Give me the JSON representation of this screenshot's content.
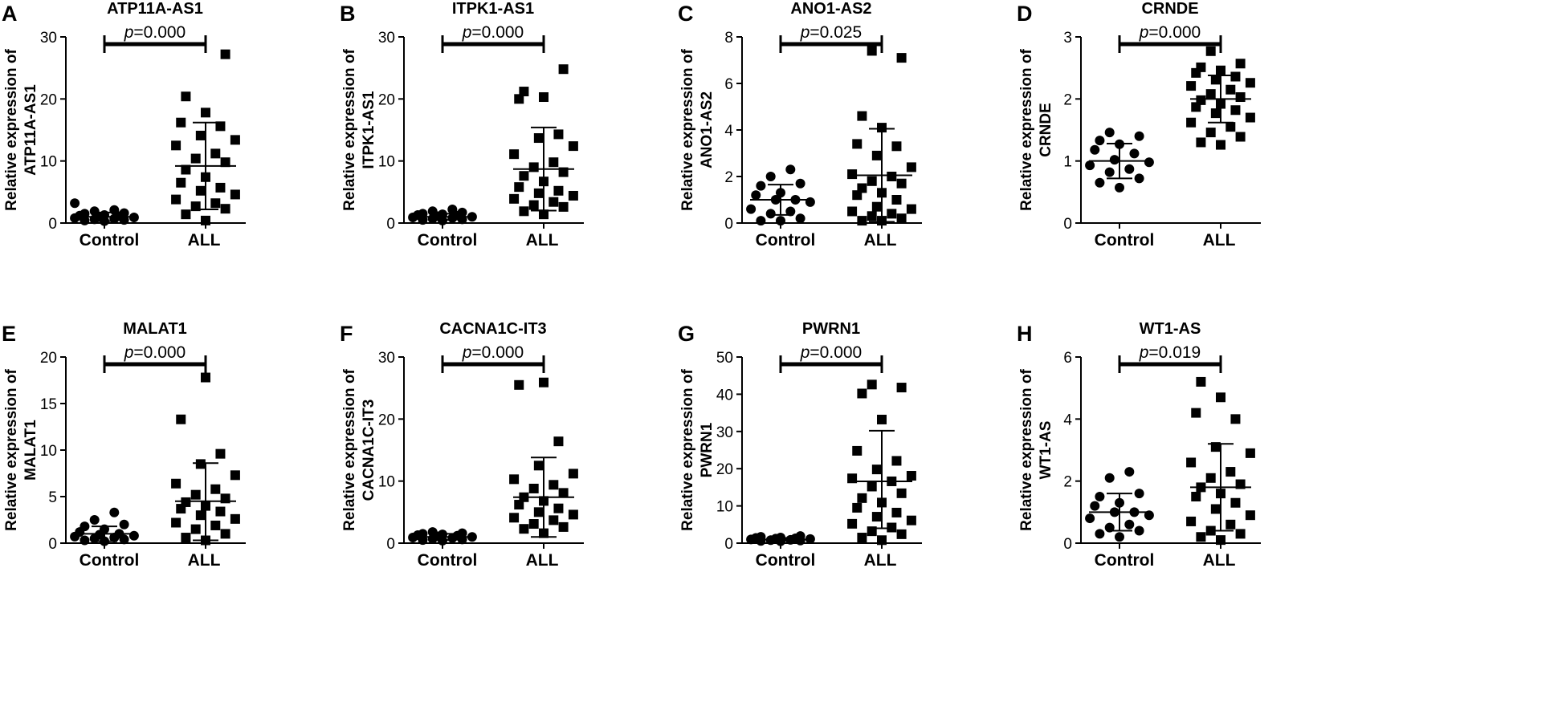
{
  "figure": {
    "panels": [
      "A",
      "B",
      "C",
      "D",
      "E",
      "F",
      "G",
      "H"
    ]
  },
  "chart_data": [
    {
      "type": "scatter",
      "panel": "A",
      "title": "ATP11A-AS1",
      "ylabel_lines": [
        "Relative expression of",
        "ATP11A-AS1"
      ],
      "categories": [
        "Control",
        "ALL"
      ],
      "ylim": [
        0,
        30
      ],
      "yticks": [
        0,
        10,
        20,
        30
      ],
      "p_label": "p=0.000",
      "series": [
        {
          "name": "Control",
          "marker": "circle",
          "mean": 1.0,
          "sd_low": 0.3,
          "sd_high": 1.7,
          "values": [
            3.2,
            2.1,
            1.9,
            1.6,
            1.5,
            1.3,
            1.2,
            1.1,
            1.0,
            0.9,
            0.8,
            0.7,
            0.6,
            0.5,
            0.4,
            0.3
          ]
        },
        {
          "name": "ALL",
          "marker": "square",
          "mean": 9.2,
          "sd_low": 2.2,
          "sd_high": 16.2,
          "values": [
            27.2,
            20.4,
            17.8,
            16.2,
            15.6,
            14.1,
            13.4,
            12.5,
            11.2,
            10.4,
            9.8,
            8.6,
            7.4,
            6.5,
            5.7,
            5.2,
            4.6,
            3.8,
            3.2,
            2.7,
            2.3,
            1.4,
            0.4
          ]
        }
      ]
    },
    {
      "type": "scatter",
      "panel": "B",
      "title": "ITPK1-AS1",
      "ylabel_lines": [
        "Relative expression of",
        "ITPK1-AS1"
      ],
      "categories": [
        "Control",
        "ALL"
      ],
      "ylim": [
        0,
        30
      ],
      "yticks": [
        0,
        10,
        20,
        30
      ],
      "p_label": "p=0.000",
      "series": [
        {
          "name": "Control",
          "marker": "circle",
          "mean": 1.0,
          "sd_low": 0.5,
          "sd_high": 1.5,
          "values": [
            2.2,
            1.9,
            1.7,
            1.5,
            1.4,
            1.3,
            1.2,
            1.1,
            1.0,
            0.9,
            0.8,
            0.7,
            0.6,
            0.5,
            0.4
          ]
        },
        {
          "name": "ALL",
          "marker": "square",
          "mean": 8.7,
          "sd_low": 2.0,
          "sd_high": 15.4,
          "values": [
            24.8,
            21.2,
            20.3,
            20.0,
            14.3,
            13.7,
            12.4,
            11.1,
            9.8,
            9.0,
            8.2,
            7.6,
            6.7,
            5.8,
            5.2,
            4.8,
            4.4,
            3.9,
            3.4,
            2.9,
            2.6,
            1.9,
            1.4
          ]
        }
      ]
    },
    {
      "type": "scatter",
      "panel": "C",
      "title": "ANO1-AS2",
      "ylabel_lines": [
        "Relative expression of",
        "ANO1-AS2"
      ],
      "categories": [
        "Control",
        "ALL"
      ],
      "ylim": [
        0,
        8
      ],
      "yticks": [
        0,
        2,
        4,
        6,
        8
      ],
      "p_label": "p=0.025",
      "series": [
        {
          "name": "Control",
          "marker": "circle",
          "mean": 1.0,
          "sd_low": 0.35,
          "sd_high": 1.65,
          "values": [
            2.3,
            2.0,
            1.7,
            1.6,
            1.3,
            1.2,
            1.0,
            1.0,
            0.9,
            0.6,
            0.5,
            0.4,
            0.2,
            0.1,
            0.1
          ]
        },
        {
          "name": "ALL",
          "marker": "square",
          "mean": 2.05,
          "sd_low": 0.05,
          "sd_high": 4.05,
          "values": [
            7.4,
            7.1,
            4.6,
            4.1,
            3.4,
            3.3,
            2.9,
            2.4,
            2.1,
            2.0,
            1.8,
            1.7,
            1.5,
            1.3,
            1.2,
            1.0,
            0.7,
            0.6,
            0.5,
            0.4,
            0.3,
            0.2,
            0.1,
            0.1
          ]
        }
      ]
    },
    {
      "type": "scatter",
      "panel": "D",
      "title": "CRNDE",
      "ylabel_lines": [
        "Relative expression of",
        "CRNDE"
      ],
      "categories": [
        "Control",
        "ALL"
      ],
      "ylim": [
        0,
        3
      ],
      "yticks": [
        0,
        1,
        2,
        3
      ],
      "p_label": "p=0.000",
      "series": [
        {
          "name": "Control",
          "marker": "circle",
          "mean": 1.0,
          "sd_low": 0.72,
          "sd_high": 1.28,
          "values": [
            1.46,
            1.4,
            1.33,
            1.27,
            1.18,
            1.12,
            1.02,
            0.98,
            0.93,
            0.87,
            0.82,
            0.72,
            0.65,
            0.57
          ]
        },
        {
          "name": "ALL",
          "marker": "square",
          "mean": 2.0,
          "sd_low": 1.62,
          "sd_high": 2.38,
          "values": [
            2.77,
            2.57,
            2.51,
            2.46,
            2.42,
            2.36,
            2.31,
            2.26,
            2.21,
            2.15,
            2.08,
            2.03,
            1.98,
            1.92,
            1.87,
            1.82,
            1.77,
            1.7,
            1.62,
            1.55,
            1.46,
            1.39,
            1.3,
            1.26
          ]
        }
      ]
    },
    {
      "type": "scatter",
      "panel": "E",
      "title": "MALAT1",
      "ylabel_lines": [
        "Relative expression of",
        "MALAT1"
      ],
      "categories": [
        "Control",
        "ALL"
      ],
      "ylim": [
        0,
        20
      ],
      "yticks": [
        0,
        5,
        10,
        15,
        20
      ],
      "p_label": "p=0.000",
      "series": [
        {
          "name": "Control",
          "marker": "circle",
          "mean": 1.0,
          "sd_low": 0.2,
          "sd_high": 1.8,
          "values": [
            3.3,
            2.5,
            2.0,
            1.8,
            1.5,
            1.2,
            1.0,
            0.9,
            0.8,
            0.7,
            0.6,
            0.5,
            0.4,
            0.3,
            0.2
          ]
        },
        {
          "name": "ALL",
          "marker": "square",
          "mean": 4.5,
          "sd_low": 0.3,
          "sd_high": 8.6,
          "values": [
            17.8,
            13.3,
            9.6,
            8.5,
            7.3,
            6.4,
            5.8,
            5.2,
            4.8,
            4.4,
            4.0,
            3.7,
            3.4,
            3.0,
            2.6,
            2.2,
            1.9,
            1.5,
            1.0,
            0.6,
            0.3
          ]
        }
      ]
    },
    {
      "type": "scatter",
      "panel": "F",
      "title": "CACNA1C-IT3",
      "ylabel_lines": [
        "Relative expression of",
        "CACNA1C-IT3"
      ],
      "categories": [
        "Control",
        "ALL"
      ],
      "ylim": [
        0,
        30
      ],
      "yticks": [
        0,
        10,
        20,
        30
      ],
      "p_label": "p=0.000",
      "series": [
        {
          "name": "Control",
          "marker": "circle",
          "mean": 1.0,
          "sd_low": 0.5,
          "sd_high": 1.5,
          "values": [
            1.8,
            1.6,
            1.5,
            1.4,
            1.3,
            1.2,
            1.1,
            1.0,
            0.9,
            0.8,
            0.7,
            0.6,
            0.5,
            0.4
          ]
        },
        {
          "name": "ALL",
          "marker": "square",
          "mean": 7.4,
          "sd_low": 1.0,
          "sd_high": 13.8,
          "values": [
            25.9,
            25.5,
            16.4,
            12.5,
            11.2,
            10.3,
            9.4,
            8.8,
            8.1,
            7.4,
            6.8,
            6.2,
            5.6,
            5.0,
            4.6,
            4.1,
            3.7,
            3.1,
            2.6,
            2.3,
            1.6
          ]
        }
      ]
    },
    {
      "type": "scatter",
      "panel": "G",
      "title": "PWRN1",
      "ylabel_lines": [
        "Relative expression of",
        "PWRN1"
      ],
      "categories": [
        "Control",
        "ALL"
      ],
      "ylim": [
        0,
        50
      ],
      "yticks": [
        0,
        10,
        20,
        30,
        40,
        50
      ],
      "p_label": "p=0.000",
      "series": [
        {
          "name": "Control",
          "marker": "circle",
          "mean": 1.0,
          "sd_low": 0.6,
          "sd_high": 1.4,
          "values": [
            1.9,
            1.7,
            1.5,
            1.4,
            1.3,
            1.2,
            1.1,
            1.0,
            0.9,
            0.8,
            0.7,
            0.6,
            0.5
          ]
        },
        {
          "name": "ALL",
          "marker": "square",
          "mean": 16.6,
          "sd_low": 4.0,
          "sd_high": 30.2,
          "values": [
            42.6,
            41.8,
            40.2,
            33.2,
            24.8,
            22.1,
            19.8,
            18.1,
            17.4,
            16.6,
            15.2,
            13.4,
            12.1,
            10.9,
            9.5,
            8.2,
            7.1,
            6.1,
            5.2,
            4.2,
            3.2,
            2.4,
            1.5,
            0.8
          ]
        }
      ]
    },
    {
      "type": "scatter",
      "panel": "H",
      "title": "WT1-AS",
      "ylabel_lines": [
        "Relative expression of",
        "WT1-AS"
      ],
      "categories": [
        "Control",
        "ALL"
      ],
      "ylim": [
        0,
        6
      ],
      "yticks": [
        0,
        2,
        4,
        6
      ],
      "p_label": "p=0.019",
      "series": [
        {
          "name": "Control",
          "marker": "circle",
          "mean": 1.0,
          "sd_low": 0.4,
          "sd_high": 1.6,
          "values": [
            2.3,
            2.1,
            1.6,
            1.5,
            1.3,
            1.2,
            1.0,
            1.0,
            0.9,
            0.8,
            0.6,
            0.5,
            0.4,
            0.3,
            0.2
          ]
        },
        {
          "name": "ALL",
          "marker": "square",
          "mean": 1.8,
          "sd_low": 0.4,
          "sd_high": 3.2,
          "values": [
            5.2,
            4.7,
            4.2,
            4.0,
            3.1,
            2.9,
            2.6,
            2.3,
            2.1,
            1.9,
            1.8,
            1.6,
            1.5,
            1.3,
            1.1,
            0.9,
            0.7,
            0.6,
            0.4,
            0.3,
            0.2,
            0.1
          ]
        }
      ]
    }
  ]
}
